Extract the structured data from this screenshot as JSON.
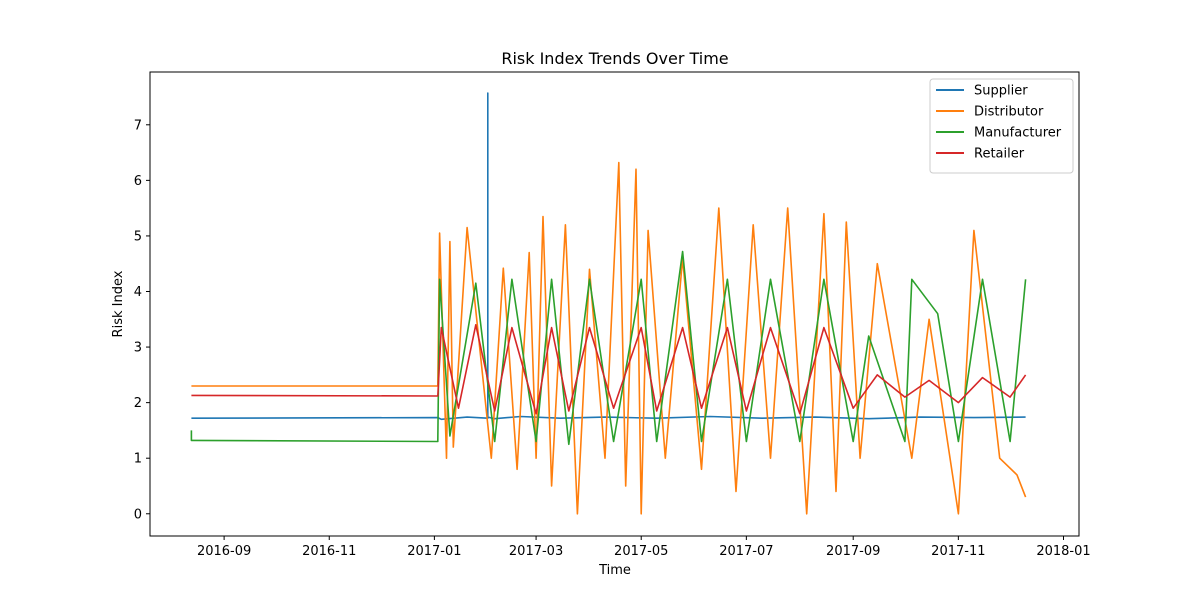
{
  "chart_data": {
    "type": "line",
    "title": "Risk Index Trends Over Time",
    "xlabel": "Time",
    "ylabel": "Risk Index",
    "x_axis_kind": "date",
    "xlim": [
      "2016-07-20",
      "2018-01-10"
    ],
    "ylim": [
      -0.4,
      7.95
    ],
    "x_ticks": [
      "2016-09-01",
      "2016-11-01",
      "2017-01-01",
      "2017-03-01",
      "2017-05-01",
      "2017-07-01",
      "2017-09-01",
      "2017-11-01",
      "2018-01-01"
    ],
    "x_tick_labels": [
      "2016-09",
      "2016-11",
      "2017-01",
      "2017-03",
      "2017-05",
      "2017-07",
      "2017-09",
      "2017-11",
      "2018-01"
    ],
    "y_ticks": [
      0,
      1,
      2,
      3,
      4,
      5,
      6,
      7
    ],
    "y_tick_labels": [
      "0",
      "1",
      "2",
      "3",
      "4",
      "5",
      "6",
      "7"
    ],
    "legend_position": "top-right",
    "grid": false,
    "series": [
      {
        "name": "Supplier",
        "color": "#1f77b4",
        "x": [
          "2016-08-13",
          "2017-01-03",
          "2017-01-05",
          "2017-01-20",
          "2017-02-01",
          "2017-02-01",
          "2017-02-01",
          "2017-02-05",
          "2017-02-20",
          "2017-03-15",
          "2017-04-10",
          "2017-05-10",
          "2017-06-10",
          "2017-07-10",
          "2017-08-10",
          "2017-09-10",
          "2017-10-10",
          "2017-11-10",
          "2017-12-10"
        ],
        "values": [
          1.72,
          1.73,
          1.7,
          1.74,
          1.72,
          7.57,
          1.74,
          1.71,
          1.75,
          1.72,
          1.74,
          1.72,
          1.75,
          1.72,
          1.74,
          1.71,
          1.74,
          1.73,
          1.74
        ]
      },
      {
        "name": "Distributor",
        "color": "#ff7f0e",
        "x": [
          "2016-08-13",
          "2017-01-03",
          "2017-01-04",
          "2017-01-08",
          "2017-01-10",
          "2017-01-12",
          "2017-01-20",
          "2017-02-03",
          "2017-02-10",
          "2017-02-18",
          "2017-02-25",
          "2017-03-01",
          "2017-03-05",
          "2017-03-10",
          "2017-03-18",
          "2017-03-25",
          "2017-04-01",
          "2017-04-10",
          "2017-04-18",
          "2017-04-22",
          "2017-04-28",
          "2017-05-01",
          "2017-05-05",
          "2017-05-15",
          "2017-05-25",
          "2017-06-05",
          "2017-06-15",
          "2017-06-25",
          "2017-07-05",
          "2017-07-15",
          "2017-07-25",
          "2017-08-05",
          "2017-08-15",
          "2017-08-22",
          "2017-08-28",
          "2017-09-05",
          "2017-09-15",
          "2017-10-05",
          "2017-10-15",
          "2017-11-01",
          "2017-11-10",
          "2017-11-25",
          "2017-12-05",
          "2017-12-10"
        ],
        "values": [
          2.3,
          2.3,
          5.05,
          1.0,
          4.9,
          1.2,
          5.15,
          1.0,
          4.42,
          0.8,
          4.7,
          1.0,
          5.35,
          0.5,
          5.2,
          0.0,
          4.4,
          1.0,
          6.32,
          0.5,
          6.2,
          0.0,
          5.1,
          1.0,
          4.6,
          0.8,
          5.5,
          0.4,
          5.2,
          1.0,
          5.5,
          0.0,
          5.4,
          0.4,
          5.25,
          1.0,
          4.5,
          1.0,
          3.5,
          0.0,
          5.1,
          1.0,
          0.7,
          0.3
        ]
      },
      {
        "name": "Manufacturer",
        "color": "#2ca02c",
        "x": [
          "2016-08-13",
          "2016-08-13",
          "2016-08-14",
          "2017-01-03",
          "2017-01-04",
          "2017-01-10",
          "2017-01-25",
          "2017-02-05",
          "2017-02-15",
          "2017-03-01",
          "2017-03-10",
          "2017-03-20",
          "2017-04-01",
          "2017-04-15",
          "2017-05-01",
          "2017-05-10",
          "2017-05-25",
          "2017-06-05",
          "2017-06-20",
          "2017-07-01",
          "2017-07-15",
          "2017-08-01",
          "2017-08-15",
          "2017-09-01",
          "2017-09-10",
          "2017-10-01",
          "2017-10-05",
          "2017-10-20",
          "2017-11-01",
          "2017-11-15",
          "2017-12-01",
          "2017-12-10"
        ],
        "values": [
          1.5,
          1.32,
          1.32,
          1.3,
          4.22,
          1.4,
          4.15,
          1.3,
          4.22,
          1.3,
          4.22,
          1.25,
          4.22,
          1.3,
          4.22,
          1.3,
          4.72,
          1.3,
          4.22,
          1.3,
          4.22,
          1.3,
          4.22,
          1.3,
          3.2,
          1.3,
          4.22,
          3.6,
          1.3,
          4.22,
          1.3,
          4.22
        ]
      },
      {
        "name": "Retailer",
        "color": "#d62728",
        "x": [
          "2016-08-13",
          "2017-01-03",
          "2017-01-05",
          "2017-01-15",
          "2017-01-25",
          "2017-02-05",
          "2017-02-15",
          "2017-03-01",
          "2017-03-10",
          "2017-03-20",
          "2017-04-01",
          "2017-04-15",
          "2017-05-01",
          "2017-05-10",
          "2017-05-25",
          "2017-06-05",
          "2017-06-20",
          "2017-07-01",
          "2017-07-15",
          "2017-08-01",
          "2017-08-15",
          "2017-09-01",
          "2017-09-15",
          "2017-10-01",
          "2017-10-15",
          "2017-11-01",
          "2017-11-15",
          "2017-12-01",
          "2017-12-10"
        ],
        "values": [
          2.13,
          2.12,
          3.35,
          1.9,
          3.4,
          1.85,
          3.35,
          1.8,
          3.35,
          1.85,
          3.35,
          1.9,
          3.35,
          1.85,
          3.35,
          1.9,
          3.35,
          1.85,
          3.35,
          1.8,
          3.35,
          1.9,
          2.5,
          2.1,
          2.4,
          2.0,
          2.45,
          2.1,
          2.5
        ]
      }
    ]
  }
}
